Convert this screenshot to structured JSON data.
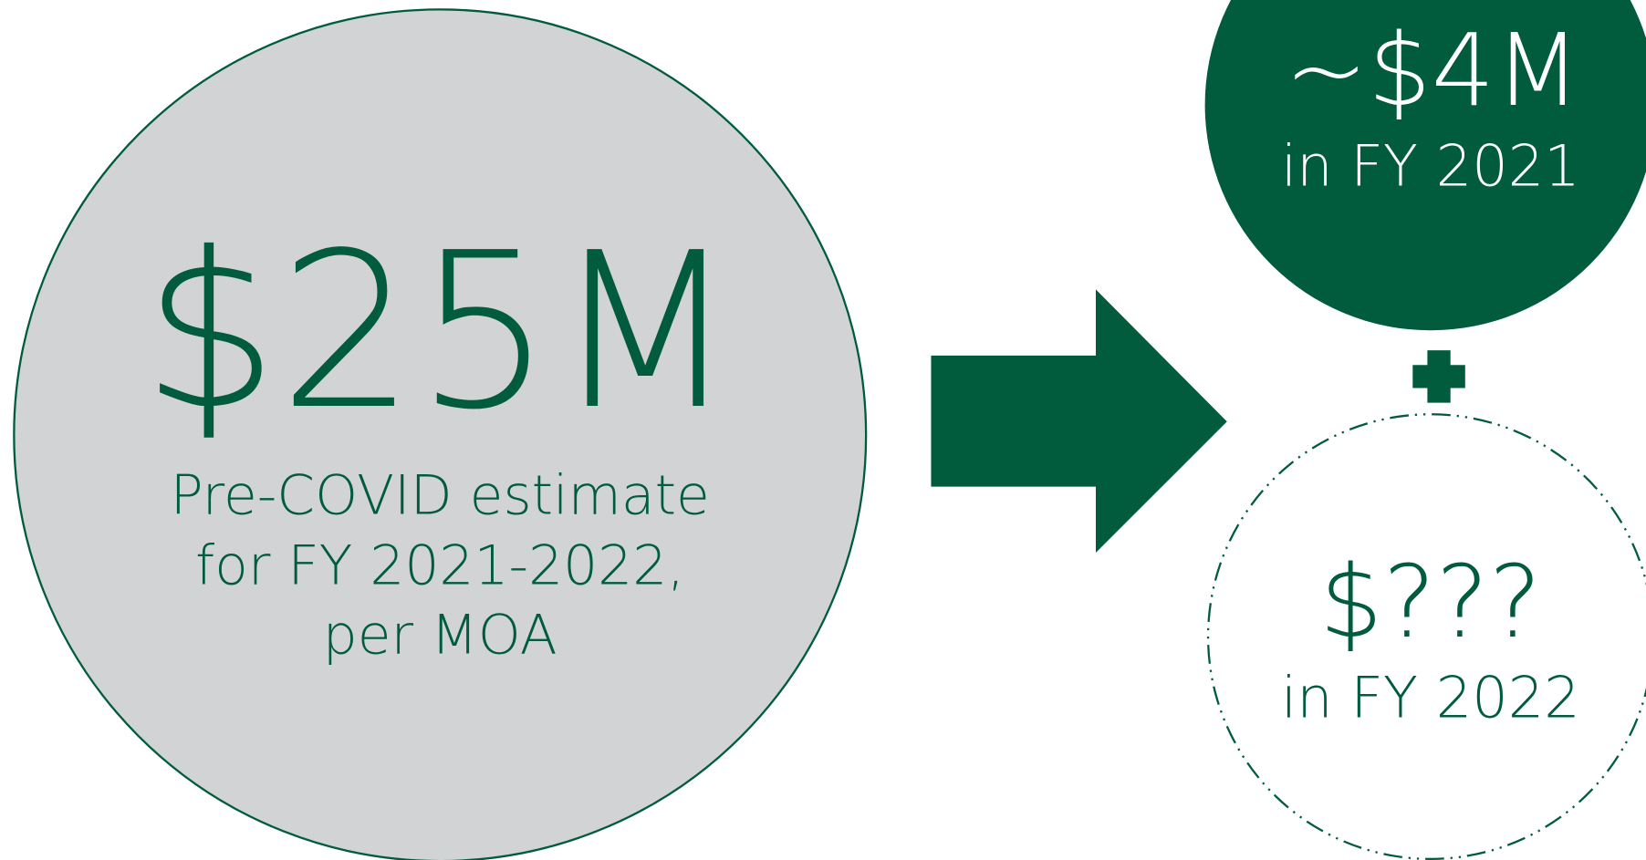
{
  "left": {
    "amount": "$25M",
    "lines": [
      "Pre-COVID estimate",
      "for FY 2021-2022,",
      "per MOA"
    ]
  },
  "top_right": {
    "amount": "~$4M",
    "label": "in FY 2021"
  },
  "bottom_right": {
    "amount": "$???",
    "label": "in FY 2022"
  }
}
